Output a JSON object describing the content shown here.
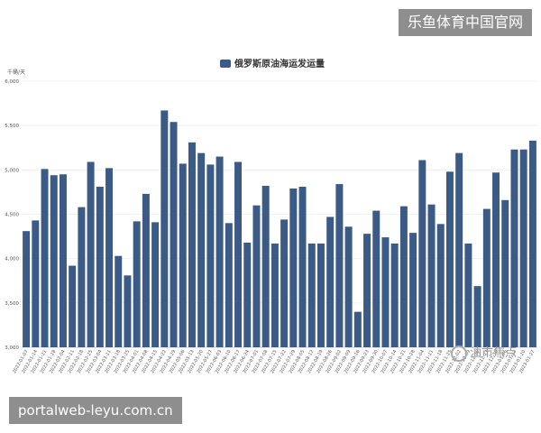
{
  "watermark_top": "乐鱼体育中国官网",
  "watermark_bottom": "portalweb-leyu.com.cn",
  "logo_text": "油市焦点",
  "colors": {
    "bar": "#3b5b86",
    "axis_text": "#555555",
    "grid": "#eeeeee"
  },
  "chart_data": {
    "type": "bar",
    "title": "俄罗斯原油海运发运量",
    "ylabel": "千桶/天",
    "ylim": [
      3000,
      6000
    ],
    "yticks": [
      "3,000",
      "3,500",
      "4,000",
      "4,500",
      "5,000",
      "5,500",
      "6,000"
    ],
    "series": [
      {
        "name": "俄罗斯原油海运发运量",
        "values": [
          4310,
          4430,
          5010,
          4940,
          4950,
          3920,
          4580,
          5090,
          4810,
          5020,
          4030,
          3810,
          4420,
          4730,
          4410,
          5670,
          5540,
          5070,
          5310,
          5190,
          5060,
          5150,
          4400,
          5090,
          4180,
          4600,
          4820,
          4170,
          4440,
          4790,
          4810,
          4170,
          4170,
          4470,
          4840,
          4360,
          3400,
          4280,
          4540,
          4240,
          4170,
          4590,
          4290,
          5110,
          4610,
          4390,
          4980,
          5190,
          4170,
          3690,
          4560,
          4970,
          4660,
          5230,
          5230,
          5330
        ]
      }
    ],
    "categories": [
      "2022-01-07",
      "2022-01-14",
      "2022-01-21",
      "2022-01-28",
      "2022-02-04",
      "2022-02-11",
      "2022-02-18",
      "2022-02-25",
      "2022-03-04",
      "2022-03-11",
      "2022-03-18",
      "2022-03-25",
      "2022-04-01",
      "2022-04-08",
      "2022-04-15",
      "2022-04-22",
      "2022-04-29",
      "2022-05-06",
      "2022-05-13",
      "2022-05-20",
      "2022-05-27",
      "2022-06-03",
      "2022-06-10",
      "2022-06-17",
      "2022-06-24",
      "2022-07-01",
      "2022-07-08",
      "2022-07-15",
      "2022-07-22",
      "2022-07-29",
      "2022-08-05",
      "2022-08-12",
      "2022-08-19",
      "2022-08-26",
      "2022-09-02",
      "2022-09-09",
      "2022-09-16",
      "2022-09-23",
      "2022-09-30",
      "2022-10-07",
      "2022-10-14",
      "2022-10-21",
      "2022-10-28",
      "2022-11-04",
      "2022-11-11",
      "2022-11-18",
      "2022-11-25",
      "2022-12-02",
      "2022-12-09",
      "2022-12-16",
      "2022-12-23",
      "2022-12-30",
      "2023-01-06",
      "2023-01-13",
      "2023-01-20",
      "2023-01-27"
    ],
    "xtick_labels": [
      "2022-01-07",
      "2022-01-14",
      "2022-01-21",
      "2022-01-28",
      "2022-02-04",
      "2022-02-11",
      "2022-02-18",
      "2022-02-25",
      "2022-03-04",
      "2022-03-11",
      "2022-03-18",
      "2022-03-25",
      "2022-04-01",
      "2022-04-08",
      "2022-04-15",
      "2022-04-22",
      "2022-04-29",
      "2022-05-06",
      "2022-05-13",
      "2022-05-20",
      "2022-05-27",
      "2022-06-03",
      "2022-06-10",
      "2022-06-17",
      "2022-06-24",
      "2022-07-01",
      "2022-07-08",
      "2022-07-15",
      "2022-07-22",
      "2022-07-29",
      "2022-08-05",
      "2022-08-12",
      "2022-08-19",
      "2022-08-26",
      "2022-09-02",
      "2022-09-09",
      "2022-09-16",
      "2022-09-23",
      "2022-09-30",
      "2022-10-07",
      "2022-10-14",
      "2022-10-21",
      "2022-10-28",
      "2022-11-04",
      "2022-11-11",
      "2022-11-18",
      "2022-11-25",
      "2022-12-02",
      "2022-12-09",
      "2022-12-16",
      "2022-12-23",
      "2022-12-30",
      "2023-01-06",
      "2023-01-13",
      "2023-01-20",
      "2023-01-27"
    ],
    "legend": "top-center",
    "grid": true
  }
}
